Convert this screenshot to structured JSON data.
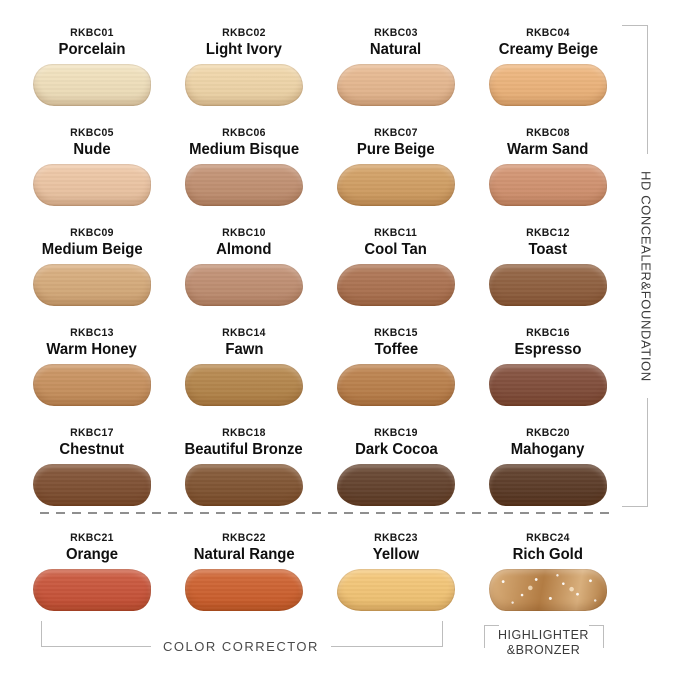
{
  "swatches": [
    {
      "code": "RKBC01",
      "name": "Porcelain",
      "color": "#f2e1bb"
    },
    {
      "code": "RKBC02",
      "name": "Light Ivory",
      "color": "#f1d6a7"
    },
    {
      "code": "RKBC03",
      "name": "Natural",
      "color": "#e7b78d"
    },
    {
      "code": "RKBC04",
      "name": "Creamy Beige",
      "color": "#eeb378"
    },
    {
      "code": "RKBC05",
      "name": "Nude",
      "color": "#eec5a2"
    },
    {
      "code": "RKBC06",
      "name": "Medium Bisque",
      "color": "#c18e6e"
    },
    {
      "code": "RKBC07",
      "name": "Pure Beige",
      "color": "#d29d5f"
    },
    {
      "code": "RKBC08",
      "name": "Warm Sand",
      "color": "#d2906c"
    },
    {
      "code": "RKBC09",
      "name": "Medium Beige",
      "color": "#d7aa78"
    },
    {
      "code": "RKBC10",
      "name": "Almond",
      "color": "#bf8c6e"
    },
    {
      "code": "RKBC11",
      "name": "Cool Tan",
      "color": "#ab6f4c"
    },
    {
      "code": "RKBC12",
      "name": "Toast",
      "color": "#8d5b39"
    },
    {
      "code": "RKBC13",
      "name": "Warm Honey",
      "color": "#c88f5a"
    },
    {
      "code": "RKBC14",
      "name": "Fawn",
      "color": "#b48346"
    },
    {
      "code": "RKBC15",
      "name": "Toffee",
      "color": "#ba7d46"
    },
    {
      "code": "RKBC16",
      "name": "Espresso",
      "color": "#7e4834"
    },
    {
      "code": "RKBC17",
      "name": "Chestnut",
      "color": "#7c4b2c"
    },
    {
      "code": "RKBC18",
      "name": "Beautiful Bronze",
      "color": "#7e502c"
    },
    {
      "code": "RKBC19",
      "name": "Dark Cocoa",
      "color": "#5f3c26"
    },
    {
      "code": "RKBC20",
      "name": "Mahogany",
      "color": "#573520"
    },
    {
      "code": "RKBC21",
      "name": "Orange",
      "color": "#c95034"
    },
    {
      "code": "RKBC22",
      "name": "Natural Range",
      "color": "#ce5d29"
    },
    {
      "code": "RKBC23",
      "name": "Yellow",
      "color": "#f5c573"
    },
    {
      "code": "RKBC24",
      "name": "Rich Gold",
      "color": "#bf8b52",
      "sparkle": true
    }
  ],
  "groups": {
    "right_label": "HD CONCEALER&FOUNDATION",
    "color_corrector_label": "COLOR CORRECTOR",
    "highlighter_label_line1": "HIGHLIGHTER",
    "highlighter_label_line2": "&BRONZER"
  },
  "colors": {
    "bracket_line": "#bdbdbd",
    "divider": "#8f8f8f",
    "group_label_text": "#4a4a4a",
    "shade_label_text": "#101010",
    "background": "#ffffff"
  }
}
